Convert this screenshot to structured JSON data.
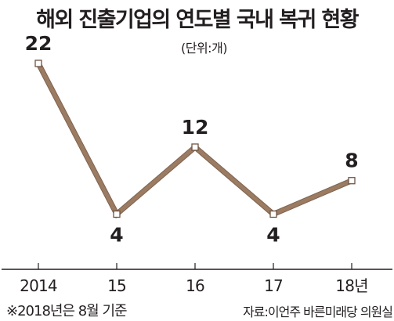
{
  "chart_data": {
    "type": "line",
    "title": "해외 진출기업의 연도별 국내 복귀 현황",
    "unit_label": "(단위:개)",
    "categories": [
      "2014",
      "15",
      "16",
      "17",
      "18년"
    ],
    "values": [
      22,
      4,
      12,
      4,
      8
    ],
    "data_labels": [
      "22",
      "4",
      "12",
      "4",
      "8"
    ],
    "ylim": [
      0,
      24
    ],
    "grid": false,
    "line_color": "#9b7b61",
    "marker_fill": "#ffffff",
    "axis_color": "#231f20"
  },
  "footnote": "※2018년은 8월 기준",
  "source": "자료:이언주 바른미래당 의원실"
}
